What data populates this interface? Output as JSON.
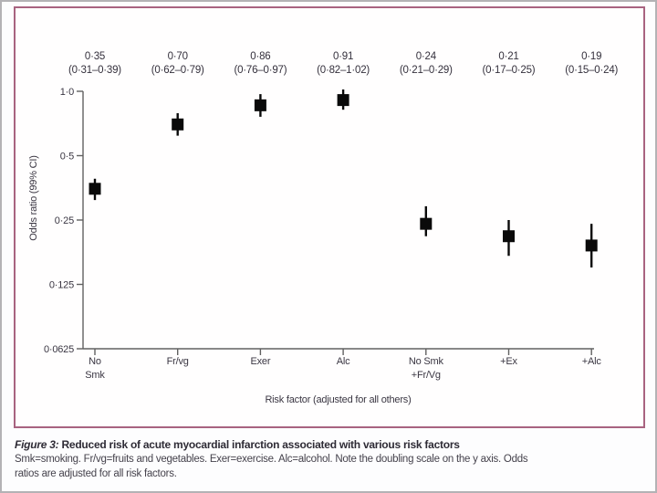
{
  "figure": {
    "panel_border_color": "#a86380",
    "marker_color": "#0a0a0a",
    "axis_color": "#606060"
  },
  "chart_data": {
    "type": "scatter",
    "title": "Reduced risk of acute myocardial infarction associated with various risk factors",
    "xlabel": "Risk factor (adjusted for all others)",
    "ylabel": "Odds ratio (99% CI)",
    "y_scale": "log2-doubling",
    "ylim": [
      0.0625,
      1.0
    ],
    "grid": false,
    "legend": "none",
    "y_ticks": [
      {
        "value": 1.0,
        "label": "1·0"
      },
      {
        "value": 0.5,
        "label": "0·5"
      },
      {
        "value": 0.25,
        "label": "0·25"
      },
      {
        "value": 0.125,
        "label": "0·125"
      },
      {
        "value": 0.0625,
        "label": "0·0625"
      }
    ],
    "points": [
      {
        "category_lines": [
          "No",
          "Smk"
        ],
        "or": 0.35,
        "ci_low": 0.31,
        "ci_high": 0.39,
        "or_label": "0·35",
        "ci_label": "(0·31–0·39)"
      },
      {
        "category_lines": [
          "Fr/vg"
        ],
        "or": 0.7,
        "ci_low": 0.62,
        "ci_high": 0.79,
        "or_label": "0·70",
        "ci_label": "(0·62–0·79)"
      },
      {
        "category_lines": [
          "Exer"
        ],
        "or": 0.86,
        "ci_low": 0.76,
        "ci_high": 0.97,
        "or_label": "0·86",
        "ci_label": "(0·76–0·97)"
      },
      {
        "category_lines": [
          "Alc"
        ],
        "or": 0.91,
        "ci_low": 0.82,
        "ci_high": 1.02,
        "or_label": "0·91",
        "ci_label": "(0·82–1·02)"
      },
      {
        "category_lines": [
          "No Smk",
          "+Fr/Vg"
        ],
        "or": 0.24,
        "ci_low": 0.21,
        "ci_high": 0.29,
        "or_label": "0·24",
        "ci_label": "(0·21–0·29)"
      },
      {
        "category_lines": [
          "+Ex"
        ],
        "or": 0.21,
        "ci_low": 0.17,
        "ci_high": 0.25,
        "or_label": "0·21",
        "ci_label": "(0·17–0·25)"
      },
      {
        "category_lines": [
          "+Alc"
        ],
        "or": 0.19,
        "ci_low": 0.15,
        "ci_high": 0.24,
        "or_label": "0·19",
        "ci_label": "(0·15–0·24)"
      }
    ]
  },
  "caption": {
    "figure_label": "Figure 3:",
    "title": "Reduced risk of acute myocardial infarction associated with various risk factors",
    "body_line1": "Smk=smoking. Fr/vg=fruits and vegetables. Exer=exercise. Alc=alcohol. Note the doubling scale on the y axis. Odds",
    "body_line2": "ratios are adjusted for all risk factors."
  }
}
